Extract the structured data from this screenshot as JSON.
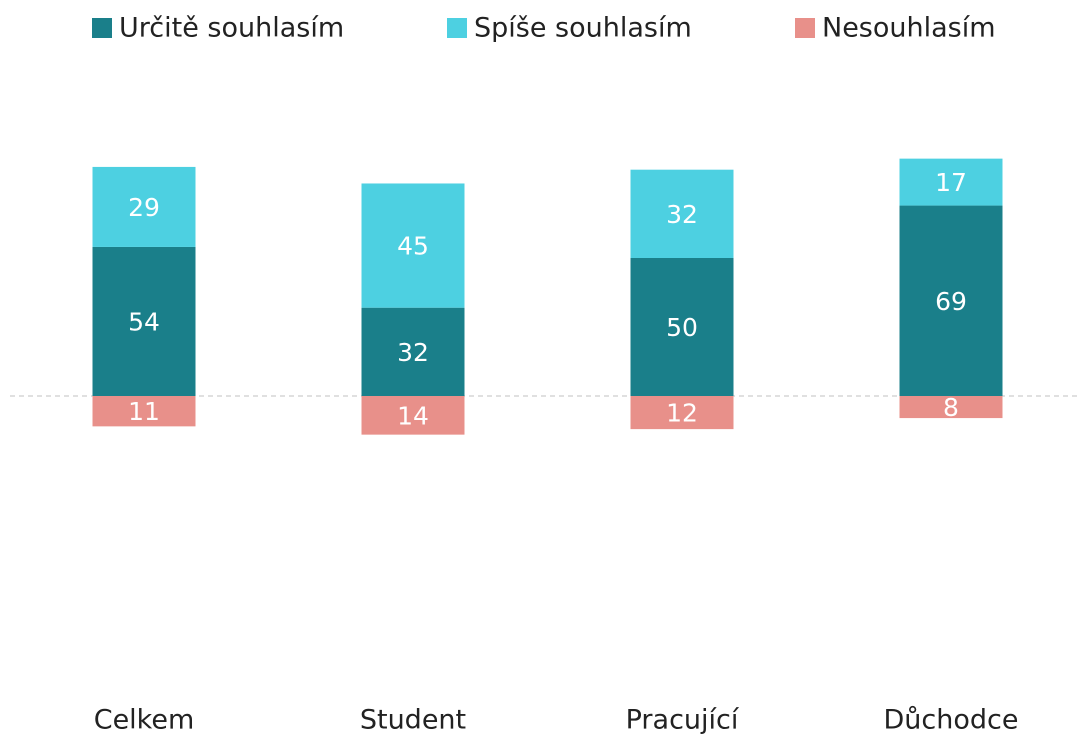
{
  "chart_data": {
    "type": "diverging-stacked-bar",
    "categories": [
      "Celkem",
      "Student",
      "Pracující",
      "Důchodce"
    ],
    "series": [
      {
        "name": "Určitě souhlasím",
        "color": "#1a7f8a",
        "values": [
          54,
          32,
          50,
          69
        ]
      },
      {
        "name": "Spíše souhlasím",
        "color": "#4dd0e1",
        "values": [
          29,
          45,
          32,
          17
        ]
      },
      {
        "name": "Nesouhlasím",
        "color": "#e8908a",
        "values": [
          -11,
          -14,
          -12,
          -8
        ],
        "value_labels": [
          "11",
          "14",
          "12",
          "8"
        ]
      }
    ],
    "legend": "top"
  }
}
